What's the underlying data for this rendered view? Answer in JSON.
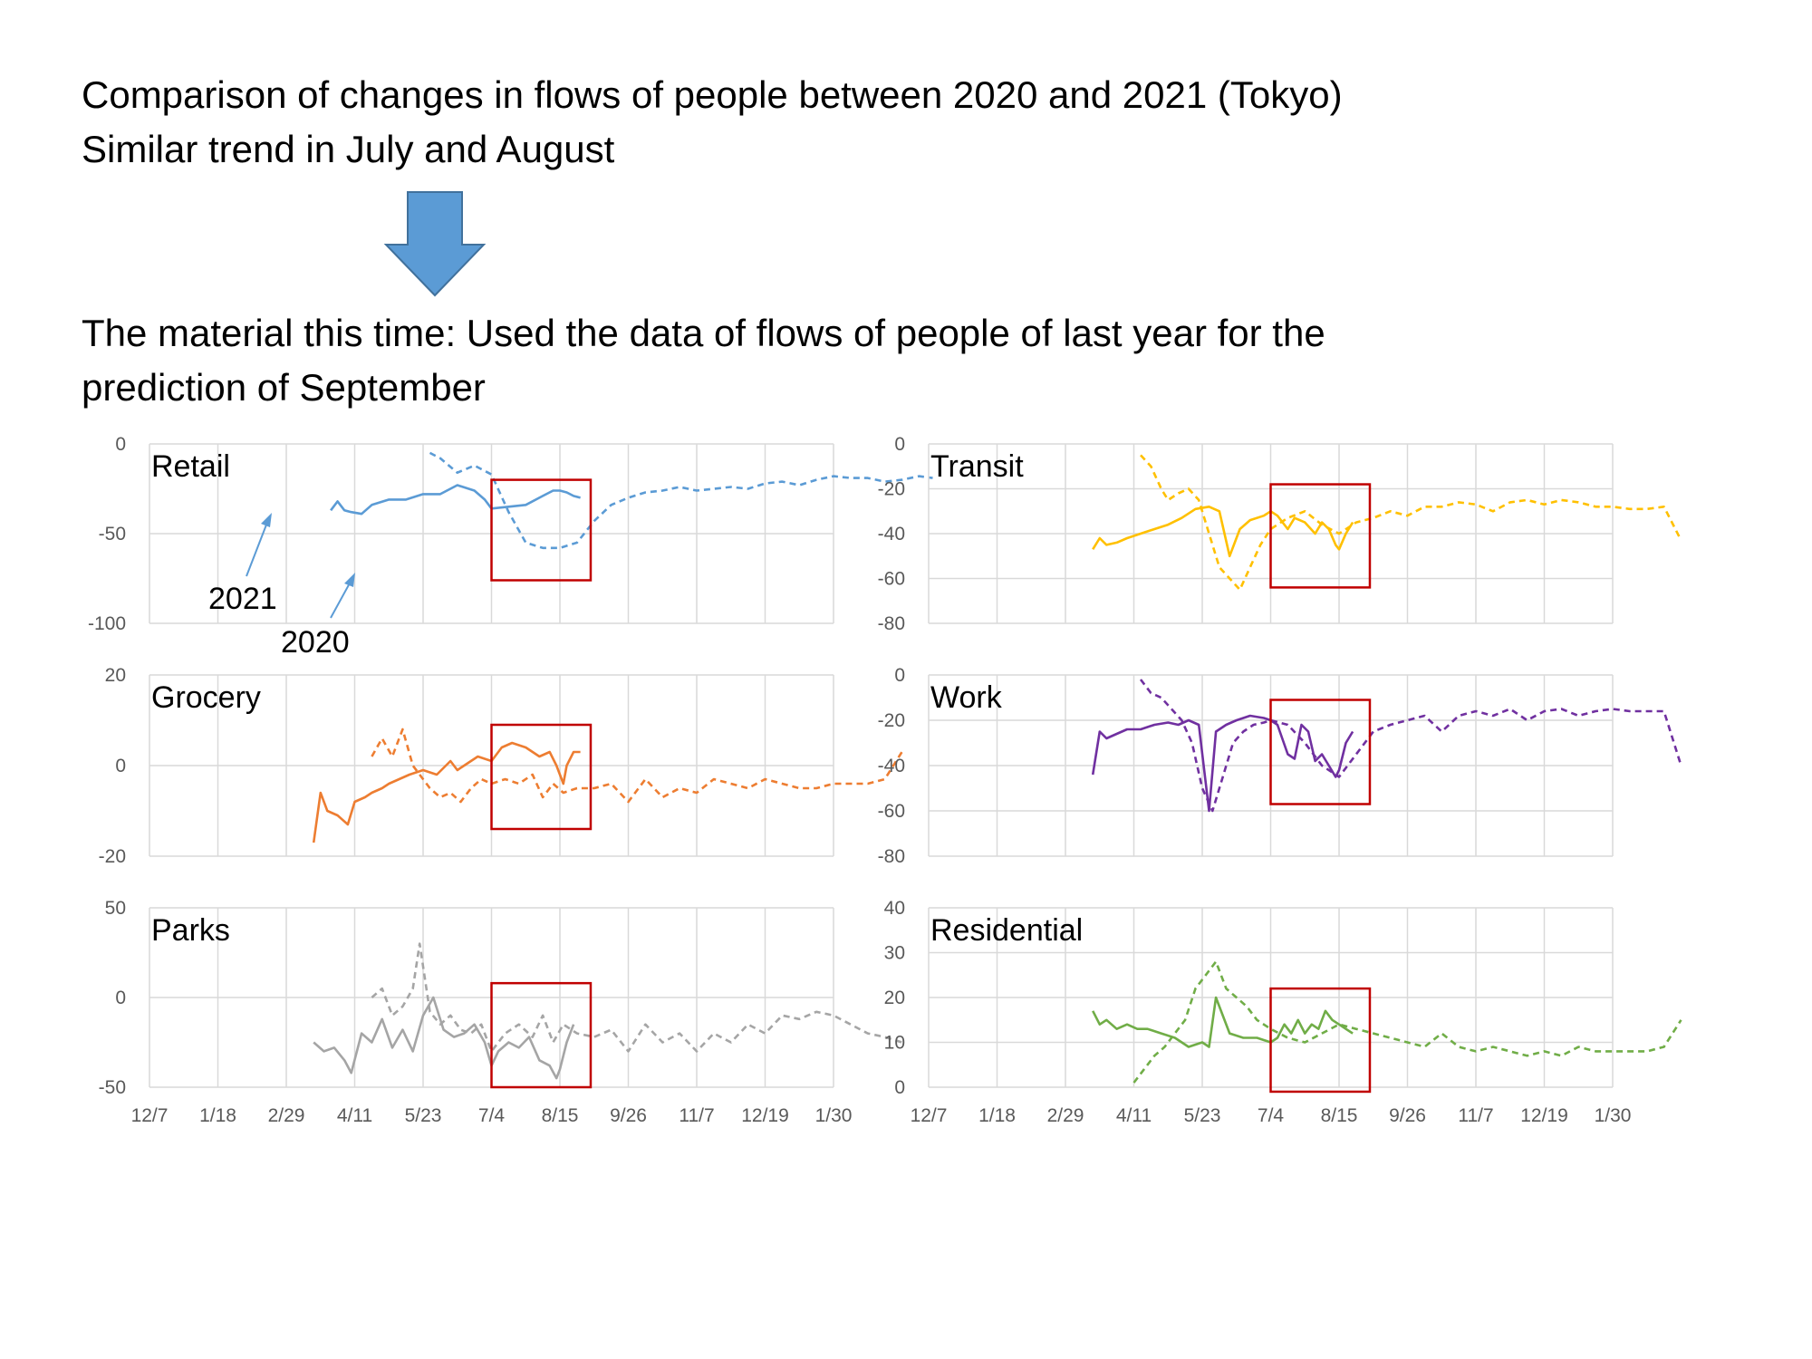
{
  "slide": {
    "line1": "Comparison of changes in flows of people between 2020 and 2021 (Tokyo)",
    "line2": "Similar trend in July and August",
    "line3": "The material this time: Used the data of flows of people of last year for the",
    "line4": "prediction of September",
    "arrow_color": "#5B9BD5",
    "highlight_color": "#C00000"
  },
  "chart_data": [
    {
      "type": "line",
      "label": "Retail",
      "color": "#5B9BD5",
      "ylim": [
        -100,
        0
      ],
      "yticks": [
        "0",
        "-50",
        "-100"
      ],
      "xticks": [
        "12/7",
        "1/18",
        "2/29",
        "4/11",
        "5/23",
        "7/4",
        "8/15",
        "9/26",
        "11/7",
        "12/19",
        "1/30"
      ],
      "annotations": [
        "2021",
        "2020"
      ],
      "highlight": {
        "x": [
          0,
          1.45
        ],
        "y": [
          -76,
          -20
        ]
      },
      "series": [
        {
          "name": "2021",
          "style": "solid",
          "x": [
            -2.35,
            -2.25,
            -2.15,
            -2.05,
            -1.9,
            -1.75,
            -1.5,
            -1.25,
            -1.0,
            -0.75,
            -0.5,
            -0.25,
            -0.1,
            0.0,
            0.25,
            0.5,
            0.75,
            0.9,
            1.0,
            1.1,
            1.2,
            1.3
          ],
          "y": [
            -37,
            -32,
            -37,
            -38,
            -39,
            -34,
            -31,
            -31,
            -28,
            -28,
            -23,
            -26,
            -31,
            -36,
            -35,
            -34,
            -29,
            -26,
            -26,
            -27,
            -29,
            -30
          ]
        },
        {
          "name": "2020",
          "style": "dashed",
          "x": [
            -0.9,
            -0.75,
            -0.5,
            -0.25,
            0.0,
            0.25,
            0.5,
            0.75,
            1.0,
            1.25,
            1.5,
            1.75,
            2.0,
            2.25,
            2.5,
            2.75,
            3.0,
            3.25,
            3.5,
            3.75,
            4.0,
            4.25,
            4.5,
            4.75,
            5.0,
            5.25,
            5.5,
            5.75,
            6.0,
            6.25,
            6.45
          ],
          "y": [
            -5,
            -8,
            -16,
            -12,
            -17,
            -38,
            -55,
            -58,
            -58,
            -55,
            -43,
            -34,
            -30,
            -27,
            -26,
            -24,
            -26,
            -25,
            -24,
            -25,
            -22,
            -21,
            -23,
            -20,
            -18,
            -19,
            -19,
            -21,
            -20,
            -18,
            -19
          ]
        }
      ]
    },
    {
      "type": "line",
      "label": "Grocery",
      "color": "#ED7D31",
      "ylim": [
        -20,
        20
      ],
      "yticks": [
        "20",
        "0",
        "-20"
      ],
      "xticks": [
        "12/7",
        "1/18",
        "2/29",
        "4/11",
        "5/23",
        "7/4",
        "8/15",
        "9/26",
        "11/7",
        "12/19",
        "1/30"
      ],
      "highlight": {
        "x": [
          0,
          1.45
        ],
        "y": [
          -14,
          9
        ]
      },
      "series": [
        {
          "name": "2021",
          "style": "solid",
          "x": [
            -2.6,
            -2.5,
            -2.4,
            -2.25,
            -2.1,
            -2.0,
            -1.85,
            -1.75,
            -1.6,
            -1.5,
            -1.35,
            -1.2,
            -1.0,
            -0.8,
            -0.6,
            -0.5,
            -0.4,
            -0.2,
            0.0,
            0.15,
            0.3,
            0.5,
            0.7,
            0.85,
            0.95,
            1.0,
            1.05,
            1.1,
            1.2,
            1.3
          ],
          "y": [
            -17,
            -6,
            -10,
            -11,
            -13,
            -8,
            -7,
            -6,
            -5,
            -4,
            -3,
            -2,
            -1,
            -2,
            1,
            -1,
            0,
            2,
            1,
            4,
            5,
            4,
            2,
            3,
            0,
            -2,
            -4,
            0,
            3,
            3
          ]
        },
        {
          "name": "2020",
          "style": "dashed",
          "x": [
            -1.75,
            -1.6,
            -1.45,
            -1.3,
            -1.15,
            -1.05,
            -0.9,
            -0.75,
            -0.6,
            -0.45,
            -0.3,
            -0.15,
            0.0,
            0.2,
            0.4,
            0.6,
            0.75,
            0.9,
            1.05,
            1.25,
            1.5,
            1.75,
            2.0,
            2.25,
            2.5,
            2.75,
            3.0,
            3.25,
            3.5,
            3.75,
            4.0,
            4.25,
            4.5,
            4.75,
            5.0,
            5.25,
            5.5,
            5.75,
            6.0
          ],
          "y": [
            2,
            6,
            2,
            8,
            0,
            -2,
            -5,
            -7,
            -6,
            -8,
            -5,
            -3,
            -4,
            -3,
            -4,
            -2,
            -7,
            -4,
            -6,
            -5,
            -5,
            -4,
            -8,
            -3,
            -7,
            -5,
            -6,
            -3,
            -4,
            -5,
            -3,
            -4,
            -5,
            -5,
            -4,
            -4,
            -4,
            -3,
            3
          ]
        }
      ]
    },
    {
      "type": "line",
      "label": "Parks",
      "color": "#A5A5A5",
      "ylim": [
        -50,
        50
      ],
      "yticks": [
        "50",
        "0",
        "-50"
      ],
      "xticks": [
        "12/7",
        "1/18",
        "2/29",
        "4/11",
        "5/23",
        "7/4",
        "8/15",
        "9/26",
        "11/7",
        "12/19",
        "1/30"
      ],
      "highlight": {
        "x": [
          0,
          1.45
        ],
        "y": [
          -50,
          8
        ]
      },
      "series": [
        {
          "name": "2021",
          "style": "solid",
          "x": [
            -2.6,
            -2.45,
            -2.3,
            -2.15,
            -2.05,
            -1.9,
            -1.75,
            -1.6,
            -1.45,
            -1.3,
            -1.15,
            -1.0,
            -0.85,
            -0.7,
            -0.55,
            -0.4,
            -0.25,
            -0.1,
            0.0,
            0.1,
            0.25,
            0.4,
            0.55,
            0.7,
            0.85,
            0.95,
            1.0,
            1.1,
            1.2
          ],
          "y": [
            -25,
            -30,
            -28,
            -35,
            -42,
            -20,
            -25,
            -12,
            -28,
            -18,
            -30,
            -10,
            0,
            -18,
            -22,
            -20,
            -15,
            -25,
            -38,
            -30,
            -25,
            -28,
            -22,
            -35,
            -38,
            -45,
            -40,
            -25,
            -15
          ]
        },
        {
          "name": "2020",
          "style": "dashed",
          "x": [
            -1.75,
            -1.6,
            -1.45,
            -1.3,
            -1.15,
            -1.05,
            -0.9,
            -0.75,
            -0.6,
            -0.45,
            -0.3,
            -0.15,
            0.0,
            0.2,
            0.4,
            0.6,
            0.75,
            0.9,
            1.05,
            1.25,
            1.5,
            1.75,
            2.0,
            2.25,
            2.5,
            2.75,
            3.0,
            3.25,
            3.5,
            3.75,
            4.0,
            4.25,
            4.5,
            4.75,
            5.0,
            5.25,
            5.5,
            5.75,
            6.0
          ],
          "y": [
            0,
            5,
            -10,
            -5,
            5,
            30,
            -8,
            -15,
            -10,
            -18,
            -20,
            -15,
            -30,
            -20,
            -15,
            -22,
            -10,
            -25,
            -15,
            -20,
            -22,
            -18,
            -30,
            -15,
            -25,
            -20,
            -30,
            -20,
            -25,
            -15,
            -20,
            -10,
            -12,
            -8,
            -10,
            -15,
            -20,
            -22,
            -25
          ]
        }
      ]
    },
    {
      "type": "line",
      "label": "Transit",
      "color": "#FFC000",
      "ylim": [
        -80,
        0
      ],
      "yticks": [
        "0",
        "-20",
        "-40",
        "-60",
        "-80"
      ],
      "xticks": [
        "12/7",
        "1/18",
        "2/29",
        "4/11",
        "5/23",
        "7/4",
        "8/15",
        "9/26",
        "11/7",
        "12/19",
        "1/30"
      ],
      "highlight": {
        "x": [
          0,
          1.45
        ],
        "y": [
          -64,
          -18
        ]
      },
      "series": [
        {
          "name": "2021",
          "style": "solid",
          "x": [
            -2.6,
            -2.5,
            -2.4,
            -2.25,
            -2.1,
            -1.9,
            -1.7,
            -1.5,
            -1.3,
            -1.1,
            -0.9,
            -0.75,
            -0.6,
            -0.45,
            -0.3,
            -0.1,
            0.0,
            0.1,
            0.25,
            0.35,
            0.5,
            0.65,
            0.75,
            0.85,
            0.95,
            1.0,
            1.1,
            1.2
          ],
          "y": [
            -47,
            -42,
            -45,
            -44,
            -42,
            -40,
            -38,
            -36,
            -33,
            -29,
            -28,
            -30,
            -50,
            -38,
            -34,
            -32,
            -30,
            -32,
            -38,
            -33,
            -35,
            -40,
            -35,
            -38,
            -45,
            -47,
            -40,
            -35
          ]
        },
        {
          "name": "2020",
          "style": "dashed",
          "x": [
            -1.9,
            -1.75,
            -1.6,
            -1.5,
            -1.35,
            -1.2,
            -1.05,
            -0.9,
            -0.75,
            -0.6,
            -0.45,
            -0.3,
            -0.15,
            0.0,
            0.25,
            0.5,
            0.75,
            1.0,
            1.25,
            1.5,
            1.75,
            2.0,
            2.25,
            2.5,
            2.75,
            3.0,
            3.25,
            3.5,
            3.75,
            4.0,
            4.25,
            4.5,
            4.75,
            5.0,
            5.25,
            5.5,
            5.75,
            6.0
          ],
          "y": [
            -5,
            -10,
            -20,
            -25,
            -22,
            -20,
            -25,
            -40,
            -55,
            -60,
            -65,
            -55,
            -45,
            -38,
            -33,
            -30,
            -36,
            -40,
            -35,
            -33,
            -30,
            -32,
            -28,
            -28,
            -26,
            -27,
            -30,
            -26,
            -25,
            -27,
            -25,
            -26,
            -28,
            -28,
            -29,
            -29,
            -28,
            -43
          ]
        }
      ]
    },
    {
      "type": "line",
      "label": "Work",
      "color": "#7030A0",
      "ylim": [
        -80,
        0
      ],
      "yticks": [
        "0",
        "-20",
        "-40",
        "-60",
        "-80"
      ],
      "xticks": [
        "12/7",
        "1/18",
        "2/29",
        "4/11",
        "5/23",
        "7/4",
        "8/15",
        "9/26",
        "11/7",
        "12/19",
        "1/30"
      ],
      "highlight": {
        "x": [
          0,
          1.45
        ],
        "y": [
          -57,
          -11
        ]
      },
      "series": [
        {
          "name": "2021",
          "style": "solid",
          "x": [
            -2.6,
            -2.5,
            -2.4,
            -2.25,
            -2.1,
            -1.9,
            -1.7,
            -1.5,
            -1.35,
            -1.2,
            -1.05,
            -0.9,
            -0.8,
            -0.65,
            -0.5,
            -0.3,
            -0.1,
            0.0,
            0.1,
            0.25,
            0.35,
            0.45,
            0.55,
            0.65,
            0.75,
            0.85,
            0.95,
            1.0,
            1.1,
            1.2
          ],
          "y": [
            -44,
            -25,
            -28,
            -26,
            -24,
            -24,
            -22,
            -21,
            -22,
            -20,
            -22,
            -60,
            -25,
            -22,
            -20,
            -18,
            -19,
            -20,
            -22,
            -35,
            -37,
            -22,
            -25,
            -38,
            -35,
            -40,
            -45,
            -42,
            -30,
            -25
          ]
        },
        {
          "name": "2020",
          "style": "dashed",
          "x": [
            -1.9,
            -1.75,
            -1.6,
            -1.45,
            -1.3,
            -1.15,
            -1.0,
            -0.85,
            -0.7,
            -0.55,
            -0.4,
            -0.25,
            -0.1,
            0.0,
            0.25,
            0.5,
            0.75,
            1.0,
            1.25,
            1.5,
            1.75,
            2.0,
            2.25,
            2.5,
            2.75,
            3.0,
            3.25,
            3.5,
            3.75,
            4.0,
            4.25,
            4.5,
            4.75,
            5.0,
            5.25,
            5.5,
            5.75,
            6.0
          ],
          "y": [
            -2,
            -8,
            -10,
            -15,
            -20,
            -30,
            -50,
            -60,
            -45,
            -30,
            -25,
            -22,
            -21,
            -20,
            -22,
            -30,
            -40,
            -45,
            -35,
            -25,
            -22,
            -20,
            -18,
            -25,
            -18,
            -16,
            -18,
            -15,
            -20,
            -16,
            -15,
            -18,
            -16,
            -15,
            -16,
            -16,
            -16,
            -40
          ]
        }
      ]
    },
    {
      "type": "line",
      "label": "Residential",
      "color": "#70AD47",
      "ylim": [
        0,
        40
      ],
      "yticks": [
        "40",
        "30",
        "20",
        "10",
        "0"
      ],
      "xticks": [
        "12/7",
        "1/18",
        "2/29",
        "4/11",
        "5/23",
        "7/4",
        "8/15",
        "9/26",
        "11/7",
        "12/19",
        "1/30"
      ],
      "highlight": {
        "x": [
          0,
          1.45
        ],
        "y": [
          -1,
          22
        ]
      },
      "series": [
        {
          "name": "2021",
          "style": "solid",
          "x": [
            -2.6,
            -2.5,
            -2.4,
            -2.25,
            -2.1,
            -1.95,
            -1.8,
            -1.6,
            -1.4,
            -1.2,
            -1.0,
            -0.9,
            -0.8,
            -0.6,
            -0.4,
            -0.2,
            0.0,
            0.1,
            0.2,
            0.3,
            0.4,
            0.5,
            0.6,
            0.7,
            0.8,
            0.9,
            1.0,
            1.1,
            1.2
          ],
          "y": [
            17,
            14,
            15,
            13,
            14,
            13,
            13,
            12,
            11,
            9,
            10,
            9,
            20,
            12,
            11,
            11,
            10,
            11,
            14,
            12,
            15,
            12,
            14,
            13,
            17,
            15,
            14,
            13,
            12
          ]
        },
        {
          "name": "2020",
          "style": "dashed",
          "x": [
            -2.0,
            -1.85,
            -1.7,
            -1.55,
            -1.4,
            -1.25,
            -1.1,
            -0.95,
            -0.8,
            -0.65,
            -0.5,
            -0.35,
            -0.2,
            0.0,
            0.25,
            0.5,
            0.75,
            1.0,
            1.25,
            1.5,
            1.75,
            2.0,
            2.25,
            2.5,
            2.75,
            3.0,
            3.25,
            3.5,
            3.75,
            4.0,
            4.25,
            4.5,
            4.75,
            5.0,
            5.25,
            5.5,
            5.75,
            6.0
          ],
          "y": [
            1,
            4,
            7,
            9,
            12,
            15,
            22,
            25,
            28,
            22,
            20,
            18,
            15,
            13,
            11,
            10,
            12,
            14,
            13,
            12,
            11,
            10,
            9,
            12,
            9,
            8,
            9,
            8,
            7,
            8,
            7,
            9,
            8,
            8,
            8,
            8,
            9,
            15
          ]
        }
      ]
    }
  ]
}
